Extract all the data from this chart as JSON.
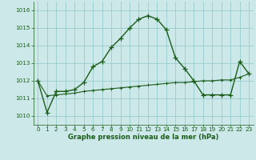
{
  "title": "Graphe pression niveau de la mer (hPa)",
  "bg_color": "#cce8e8",
  "grid_color": "#99cccc",
  "line_color": "#1a5c1a",
  "xlim": [
    -0.5,
    23.5
  ],
  "ylim": [
    1009.5,
    1016.5
  ],
  "yticks": [
    1010,
    1011,
    1012,
    1013,
    1014,
    1015,
    1016
  ],
  "xticks": [
    0,
    1,
    2,
    3,
    4,
    5,
    6,
    7,
    8,
    9,
    10,
    11,
    12,
    13,
    14,
    15,
    16,
    17,
    18,
    19,
    20,
    21,
    22,
    23
  ],
  "series1_x": [
    0,
    1,
    2,
    3,
    4,
    5,
    6,
    7,
    8,
    9,
    10,
    11,
    12,
    13,
    14,
    15,
    16,
    17,
    18,
    19,
    20,
    21,
    22,
    23
  ],
  "series1_y": [
    1012.0,
    1010.2,
    1011.4,
    1011.4,
    1011.5,
    1011.9,
    1012.8,
    1013.1,
    1013.9,
    1014.4,
    1015.0,
    1015.5,
    1015.7,
    1015.5,
    1014.9,
    1013.3,
    1012.7,
    1012.0,
    1011.2,
    1011.2,
    1011.2,
    1011.2,
    1013.1,
    1012.4
  ],
  "series2_x": [
    0,
    1,
    2,
    3,
    4,
    5,
    6,
    7,
    8,
    9,
    10,
    11,
    12,
    13,
    14,
    15,
    16,
    17,
    18,
    19,
    20,
    21,
    22,
    23
  ],
  "series2_y": [
    1012.0,
    1011.15,
    1011.2,
    1011.25,
    1011.3,
    1011.4,
    1011.45,
    1011.5,
    1011.55,
    1011.6,
    1011.65,
    1011.7,
    1011.75,
    1011.8,
    1011.85,
    1011.9,
    1011.9,
    1011.95,
    1012.0,
    1012.0,
    1012.05,
    1012.05,
    1012.2,
    1012.4
  ],
  "title_fontsize": 6.0,
  "tick_fontsize": 5.2
}
